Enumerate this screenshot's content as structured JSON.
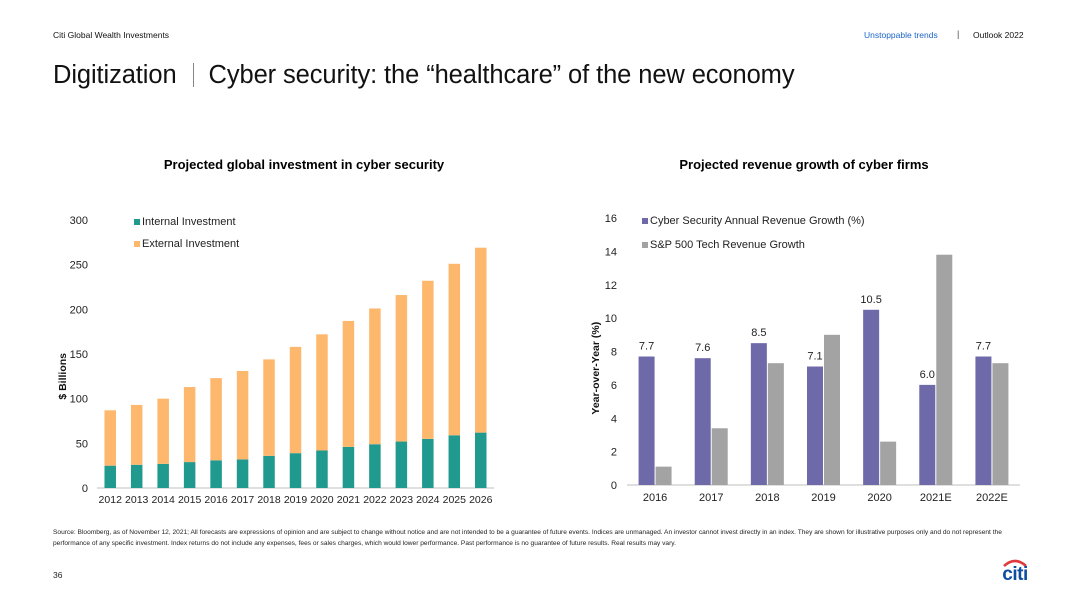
{
  "header": {
    "brand": "Citi Global Wealth Investments",
    "section": "Unstoppable trends",
    "separator": "|",
    "report": "Outlook 2022",
    "title_left": "Digitization",
    "title_right": "Cyber security: the “healthcare” of the new economy"
  },
  "chart_data": [
    {
      "type": "bar",
      "stacked": true,
      "title": "Projected global investment in cyber security",
      "xlabel": "",
      "ylabel": "$ Billions",
      "ylim": [
        0,
        300
      ],
      "yticks": [
        0,
        50,
        100,
        150,
        200,
        250,
        300
      ],
      "categories": [
        "2012",
        "2013",
        "2014",
        "2015",
        "2016",
        "2017",
        "2018",
        "2019",
        "2020",
        "2021",
        "2022",
        "2023",
        "2024",
        "2025",
        "2026"
      ],
      "series": [
        {
          "name": "Internal Investment",
          "color": "#20998f",
          "values": [
            25,
            26,
            27,
            29,
            31,
            32,
            36,
            39,
            42,
            46,
            49,
            52,
            55,
            59,
            62
          ]
        },
        {
          "name": "External Investment",
          "color": "#fdb86e",
          "values": [
            62,
            67,
            73,
            84,
            92,
            99,
            108,
            119,
            130,
            141,
            152,
            164,
            177,
            192,
            207
          ]
        }
      ],
      "legend": "top-left",
      "grid": false
    },
    {
      "type": "bar",
      "title": "Projected revenue growth of cyber firms",
      "xlabel": "",
      "ylabel": "Year-over-Year (%)",
      "ylim": [
        0,
        16
      ],
      "yticks": [
        0,
        2,
        4,
        6,
        8,
        10,
        12,
        14,
        16
      ],
      "categories": [
        "2016",
        "2017",
        "2018",
        "2019",
        "2020",
        "2021E",
        "2022E"
      ],
      "series": [
        {
          "name": "Cyber Security Annual Revenue Growth (%)",
          "color": "#6e69a8",
          "values": [
            7.7,
            7.6,
            8.5,
            7.1,
            10.5,
            6.0,
            7.7
          ]
        },
        {
          "name": "S&P 500 Tech Revenue Growth",
          "color": "#a3a3a3",
          "values": [
            1.1,
            3.4,
            7.3,
            9.0,
            2.6,
            13.8,
            7.3
          ]
        }
      ],
      "data_labels": [
        "7.7",
        "7.6",
        "8.5",
        "7.1",
        "10.5",
        "6.0",
        "7.7"
      ],
      "legend": "top-left",
      "grid": false
    }
  ],
  "footer": {
    "source": "Source: Bloomberg, as of November 12, 2021; All forecasts are expressions of opinion and are subject to change without notice and are not intended to be a guarantee of future events. Indices are unmanaged. An investor cannot invest directly in an index. They are shown for illustrative purposes only and do not represent the performance of any specific investment. Index returns do not include any expenses, fees or sales charges, which would lower performance. Past performance is no guarantee of future results. Real results may vary.",
    "page_number": "36",
    "logo_text": "citi"
  },
  "colors": {
    "accent_blue": "#1a66c9",
    "logo_red": "#e03a3e"
  }
}
